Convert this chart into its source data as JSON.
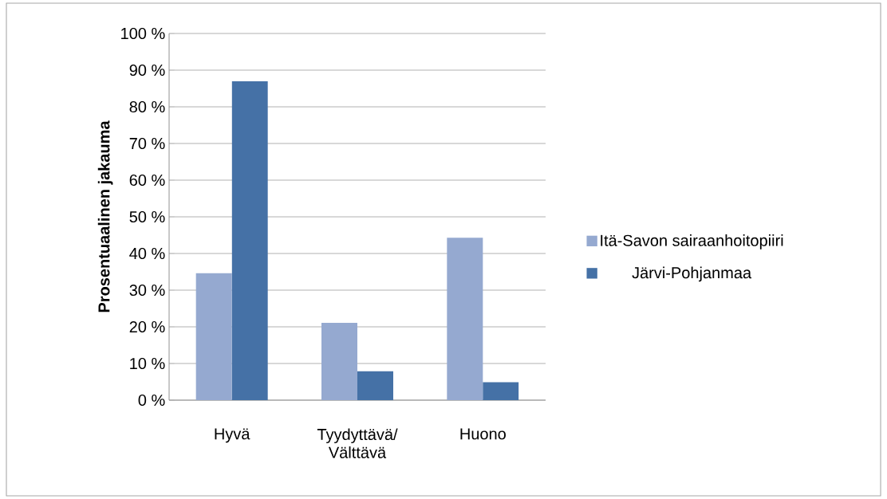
{
  "chart_data": {
    "type": "bar",
    "ylabel": "Prosentuaalinen jakauma",
    "categories": [
      "Hyvä",
      "Tyydyttävä/ Välttävä",
      "Huono"
    ],
    "series": [
      {
        "name": "Itä-Savon sairaanhoitopiiri",
        "color": "#95a9d0",
        "values": [
          34.6,
          21.1,
          44.3
        ]
      },
      {
        "name": "Järvi-Pohjanmaa",
        "color": "#4571a6",
        "values": [
          87,
          7.9,
          4.9
        ]
      }
    ],
    "ylim": [
      0,
      100
    ],
    "yticks": [
      {
        "value": 0,
        "label": "0 %"
      },
      {
        "value": 10,
        "label": "10 %"
      },
      {
        "value": 20,
        "label": "20 %"
      },
      {
        "value": 30,
        "label": "30 %"
      },
      {
        "value": 40,
        "label": "40 %"
      },
      {
        "value": 50,
        "label": "50 %"
      },
      {
        "value": 60,
        "label": "60 %"
      },
      {
        "value": 70,
        "label": "70 %"
      },
      {
        "value": 80,
        "label": "80 %"
      },
      {
        "value": 90,
        "label": "90 %"
      },
      {
        "value": 100,
        "label": "100 %"
      }
    ],
    "grid": "y",
    "legend": "right"
  }
}
